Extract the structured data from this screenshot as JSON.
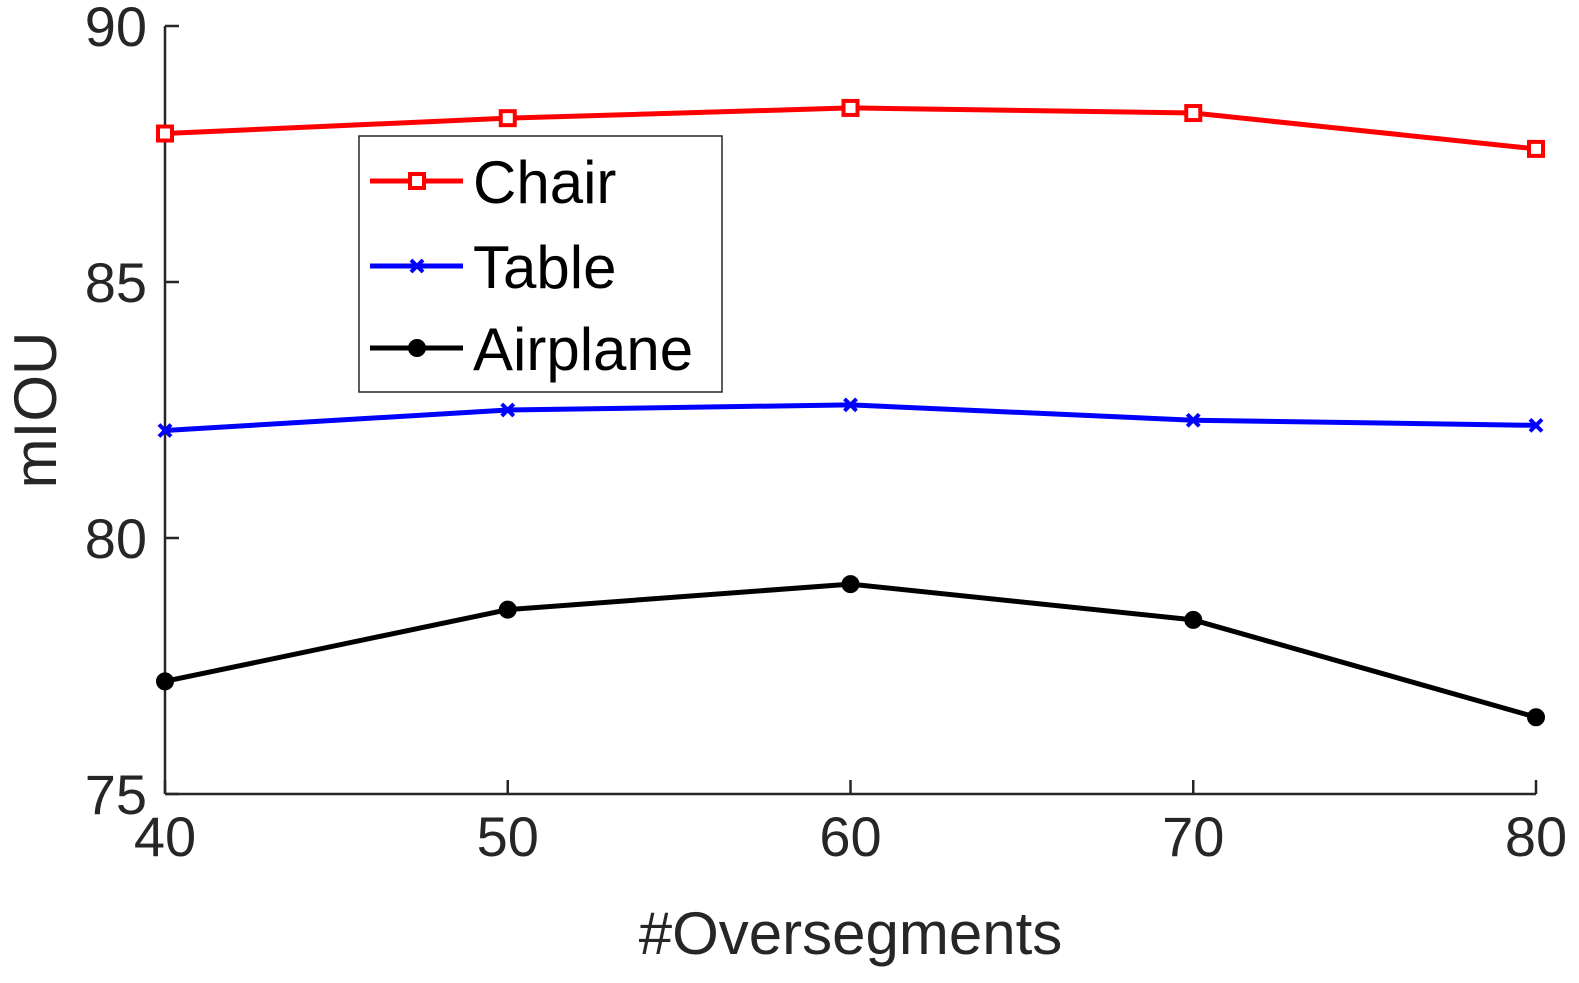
{
  "chart_data": {
    "type": "line",
    "x": [
      40,
      50,
      60,
      70,
      80
    ],
    "xlabel": "#Oversegments",
    "ylabel": "mIOU",
    "xlim": [
      40,
      80
    ],
    "ylim": [
      75,
      90
    ],
    "xticks": [
      "40",
      "50",
      "60",
      "70",
      "80"
    ],
    "yticks": [
      "75",
      "80",
      "85",
      "90"
    ],
    "grid": false,
    "legend_position": "upper-left",
    "series": [
      {
        "name": "Chair",
        "color": "#ff0000",
        "marker": "square",
        "values": [
          87.9,
          88.2,
          88.4,
          88.3,
          87.6
        ]
      },
      {
        "name": "Table",
        "color": "#0000ff",
        "marker": "x",
        "values": [
          82.1,
          82.5,
          82.6,
          82.3,
          82.2
        ]
      },
      {
        "name": "Airplane",
        "color": "#000000",
        "marker": "circle",
        "values": [
          77.2,
          78.6,
          79.1,
          78.4,
          76.5
        ]
      }
    ]
  }
}
